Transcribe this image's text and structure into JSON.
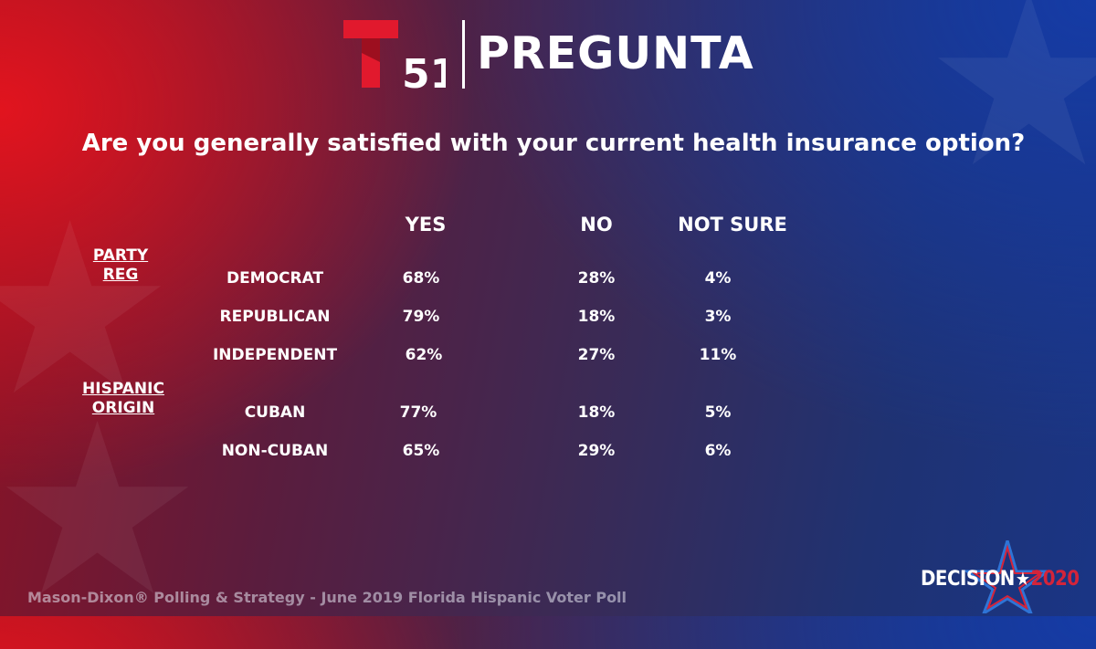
{
  "brand": {
    "logo_number": "51",
    "header_title": "PREGUNTA",
    "red": "#e1192d",
    "white": "#ffffff"
  },
  "chart_data": {
    "type": "table",
    "title": "Are you generally satisfied with your current health insurance option?",
    "columns": [
      "YES",
      "NO",
      "NOT SURE"
    ],
    "groups": [
      {
        "label_lines": [
          "PARTY",
          "REG"
        ],
        "rows": [
          {
            "label": "DEMOCRAT",
            "values": [
              "68%",
              "28%",
              "4%"
            ]
          },
          {
            "label": "REPUBLICAN",
            "values": [
              "79%",
              "18%",
              "3%"
            ]
          },
          {
            "label": "INDEPENDENT",
            "values": [
              "62%",
              "27%",
              "11%"
            ]
          }
        ]
      },
      {
        "label_lines": [
          "HISPANIC",
          "ORIGIN"
        ],
        "rows": [
          {
            "label": "CUBAN",
            "values": [
              "77%",
              "18%",
              "5%"
            ]
          },
          {
            "label": "NON-CUBAN",
            "values": [
              "65%",
              "29%",
              "6%"
            ]
          }
        ]
      }
    ]
  },
  "footer": {
    "source": "Mason-Dixon® Polling & Strategy - June 2019 Florida Hispanic Voter Poll",
    "badge_word": "DECISION",
    "badge_star": "★",
    "badge_year": "2020"
  }
}
